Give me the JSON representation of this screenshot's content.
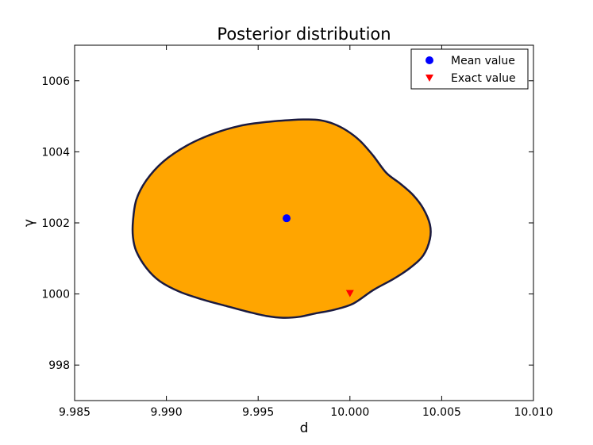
{
  "chart_data": {
    "type": "contour",
    "title": "Posterior distribution",
    "xlabel": "d",
    "ylabel": "γ",
    "xlim": [
      9.985,
      10.01
    ],
    "ylim": [
      997,
      1007
    ],
    "x_ticks": [
      9.985,
      9.99,
      9.995,
      10.0,
      10.005,
      10.01
    ],
    "x_tick_labels": [
      "9.985",
      "9.990",
      "9.995",
      "10.000",
      "10.005",
      "10.010"
    ],
    "y_ticks": [
      998,
      1000,
      1002,
      1004,
      1006
    ],
    "y_tick_labels": [
      "998",
      "1000",
      "1002",
      "1004",
      "1006"
    ],
    "grid": false,
    "legend_position": "top-right",
    "region": {
      "fill_color": "#ffa500",
      "edge_color": "#1a1a40",
      "outline": [
        [
          9.98818,
          1002.05
        ],
        [
          9.98836,
          1002.65
        ],
        [
          9.98891,
          1003.2
        ],
        [
          9.98982,
          1003.72
        ],
        [
          9.99109,
          1004.17
        ],
        [
          9.99255,
          1004.51
        ],
        [
          9.994,
          1004.73
        ],
        [
          9.99545,
          1004.84
        ],
        [
          9.99691,
          1004.9
        ],
        [
          9.99764,
          1004.91
        ],
        [
          9.99836,
          1004.89
        ],
        [
          9.99909,
          1004.79
        ],
        [
          9.99982,
          1004.6
        ],
        [
          10.00055,
          1004.31
        ],
        [
          10.00127,
          1003.89
        ],
        [
          10.002,
          1003.4
        ],
        [
          10.00273,
          1003.11
        ],
        [
          10.00345,
          1002.78
        ],
        [
          10.004,
          1002.4
        ],
        [
          10.00436,
          1001.95
        ],
        [
          10.00436,
          1001.55
        ],
        [
          10.004,
          1001.09
        ],
        [
          10.00327,
          1000.73
        ],
        [
          10.00236,
          1000.42
        ],
        [
          10.00127,
          1000.11
        ],
        [
          10.00018,
          999.73
        ],
        [
          9.99909,
          999.55
        ],
        [
          9.99818,
          999.46
        ],
        [
          9.99727,
          999.36
        ],
        [
          9.99636,
          999.33
        ],
        [
          9.99545,
          999.38
        ],
        [
          9.99436,
          999.51
        ],
        [
          9.99327,
          999.66
        ],
        [
          9.992,
          999.84
        ],
        [
          9.99073,
          1000.06
        ],
        [
          9.98964,
          1000.36
        ],
        [
          9.98891,
          1000.73
        ],
        [
          9.98836,
          1001.2
        ],
        [
          9.98818,
          1001.6
        ]
      ]
    },
    "series": [
      {
        "name": "Mean value",
        "marker": "circle",
        "color": "#0000ff",
        "x": [
          9.99655
        ],
        "y": [
          1002.13
        ]
      },
      {
        "name": "Exact value",
        "marker": "triangle-down",
        "color": "#ff0000",
        "x": [
          10.0
        ],
        "y": [
          1000.0
        ]
      }
    ]
  }
}
